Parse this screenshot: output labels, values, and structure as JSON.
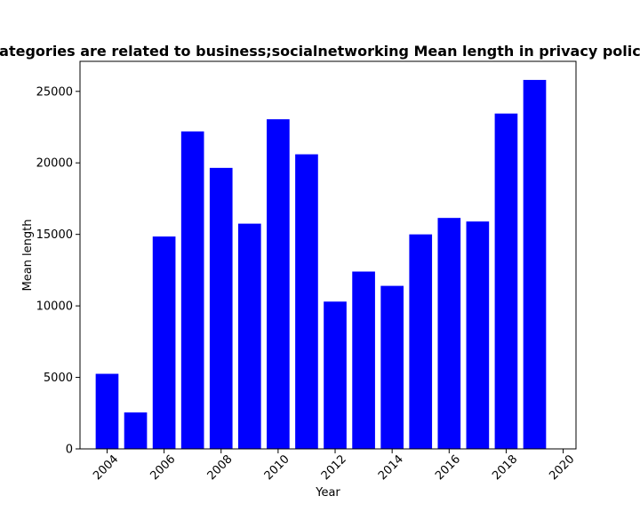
{
  "chart_data": {
    "type": "bar",
    "title": "Categories are related to business;socialnetworking Mean length in privacy policies",
    "xlabel": "Year",
    "ylabel": "Mean length",
    "x": [
      2004,
      2005,
      2006,
      2007,
      2008,
      2009,
      2010,
      2011,
      2012,
      2013,
      2014,
      2015,
      2016,
      2017,
      2018,
      2019
    ],
    "values": [
      5250,
      2550,
      14850,
      22200,
      19650,
      15750,
      23050,
      20600,
      10300,
      12400,
      11400,
      15000,
      16150,
      15900,
      23450,
      25800
    ],
    "xticks": [
      2004,
      2006,
      2008,
      2010,
      2012,
      2014,
      2016,
      2018,
      2020
    ],
    "yticks": [
      0,
      5000,
      10000,
      15000,
      20000,
      25000
    ],
    "xlim": [
      2003.05,
      2020.45
    ],
    "ylim": [
      0,
      27100
    ],
    "bar_color": "#0000ff",
    "grid": false
  }
}
